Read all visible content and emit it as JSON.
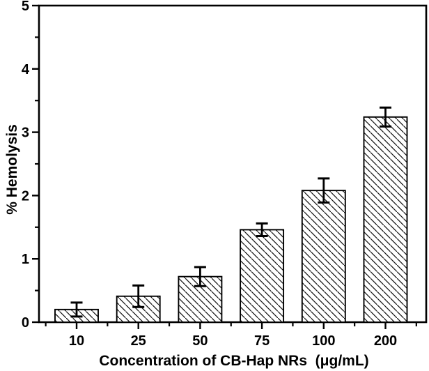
{
  "chart_data": {
    "type": "bar",
    "title": "",
    "xlabel": "Concentration of CB-Hap NRs  (μg/mL)",
    "ylabel": "% Hemolysis",
    "categories": [
      "10",
      "25",
      "50",
      "75",
      "100",
      "200"
    ],
    "series": [
      {
        "name": "% Hemolysis",
        "values": [
          0.2,
          0.41,
          0.72,
          1.46,
          2.08,
          3.24
        ],
        "errors": [
          0.11,
          0.17,
          0.15,
          0.1,
          0.19,
          0.15
        ]
      }
    ],
    "ylim": [
      0,
      5
    ],
    "ytick_step": 1,
    "yminor_step": 0.5,
    "x_minor_ticks_between_categories": true,
    "grid": false,
    "legend": null,
    "style": {
      "bar_fill": "white-with-black-diagonal-hatch",
      "hatch_direction": "top-left-to-bottom-right",
      "frame": "full-box",
      "axis_color": "#000000",
      "bar_stroke_color": "#000000",
      "background_color": "#ffffff"
    }
  }
}
